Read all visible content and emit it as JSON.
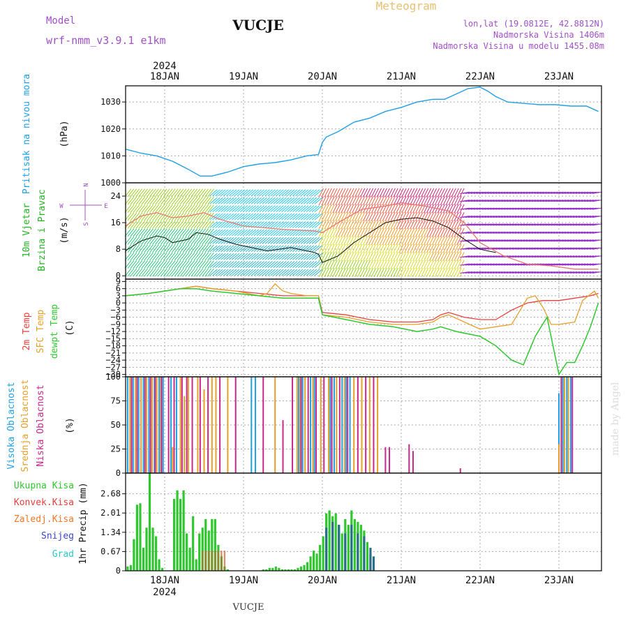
{
  "header": {
    "model_label": "Model",
    "model_name": "wrf-nmm_v3.9.1  e1km",
    "station": "VUCJE",
    "product": "Meteogram",
    "lonlat": "lon,lat (19.0812E, 42.8812N)",
    "elev": "Nadmorska Visina 1406m",
    "elev_model": "Nadmorska Visina u modelu 1455.08m",
    "watermark": "made by Angel",
    "footer": "VUCJE"
  },
  "colors": {
    "pressure": "#1ea0e6",
    "wind_speed": "#22b422",
    "wind_dir": "#22b422",
    "t2m": "#e8403c",
    "sfc": "#e6a02a",
    "dewpt": "#2ec82e",
    "cloud_high": "#1ea0e6",
    "cloud_mid": "#e6a02a",
    "cloud_low": "#c8288c",
    "precip_total": "#2ec82e",
    "precip_conv": "#e8403c",
    "precip_frz": "#f07828",
    "precip_snow": "#3c46c8",
    "precip_grad": "#28c8c8"
  },
  "chart_data": [
    {
      "type": "line",
      "title": "Pritisak na nivou mora",
      "ylabel": "(hPa)",
      "year": "2024",
      "days": [
        "18JAN",
        "19JAN",
        "20JAN",
        "21JAN",
        "22JAN",
        "23JAN"
      ],
      "yticks": [
        "1000",
        "1010",
        "1020",
        "1030"
      ],
      "ylim": [
        1000,
        1036
      ],
      "x": [
        -0.5,
        -0.3,
        -0.1,
        0.1,
        0.3,
        0.45,
        0.6,
        0.8,
        1.0,
        1.2,
        1.4,
        1.6,
        1.8,
        1.95,
        2.0,
        2.05,
        2.2,
        2.4,
        2.6,
        2.8,
        3.0,
        3.2,
        3.4,
        3.55,
        3.7,
        3.85,
        4.0,
        4.1,
        4.2,
        4.35,
        4.55,
        4.75,
        4.95,
        5.15,
        5.35,
        5.5
      ],
      "values": [
        1012.5,
        1011,
        1010,
        1008,
        1005,
        1002.5,
        1002.5,
        1004,
        1006,
        1007,
        1007.5,
        1008.5,
        1010,
        1010.5,
        1015,
        1017,
        1019,
        1022.5,
        1024,
        1026.5,
        1028,
        1030,
        1031,
        1031,
        1033,
        1035,
        1035.5,
        1034,
        1032,
        1030,
        1029.5,
        1029,
        1029,
        1028.5,
        1028.5,
        1026.5
      ]
    },
    {
      "type": "line",
      "title": "10m Vjetar Brzina i Pravac",
      "ylabel": "(m/s)",
      "compass": [
        "N",
        "E",
        "W",
        "S"
      ],
      "yticks": [
        "0",
        "8",
        "16",
        "24"
      ],
      "ylim": [
        -1,
        28
      ],
      "series": [
        {
          "x": [
            -0.5,
            -0.3,
            -0.1,
            0.0,
            0.1,
            0.3,
            0.4,
            0.55,
            0.7,
            0.9,
            1.1,
            1.3,
            1.6,
            1.9,
            1.95,
            2.0,
            2.2,
            2.4,
            2.6,
            2.8,
            3.0,
            3.2,
            3.4,
            3.6,
            3.8,
            4.0,
            4.1,
            4.2
          ],
          "values": [
            7.5,
            10.5,
            12,
            11.5,
            10,
            11,
            13,
            12.5,
            11,
            9.5,
            8.5,
            7.5,
            8.5,
            7,
            6.5,
            4,
            6,
            10,
            13,
            16,
            17,
            17.5,
            16.5,
            14.5,
            11,
            8,
            7.5,
            7
          ]
        },
        {
          "x": [
            -0.5,
            -0.3,
            -0.1,
            0.1,
            0.3,
            0.5,
            0.7,
            1.0,
            1.5,
            1.9,
            2.0,
            2.2,
            2.5,
            2.8,
            3.0,
            3.3,
            3.6,
            3.8,
            4.0,
            4.3,
            4.6,
            4.9,
            5.2,
            5.5
          ],
          "values": [
            15,
            18,
            19,
            17.5,
            18,
            19,
            17,
            15,
            14,
            13.5,
            13,
            16,
            20,
            21,
            22,
            21,
            19.5,
            16,
            10,
            6,
            3.5,
            3,
            2,
            2
          ]
        }
      ]
    },
    {
      "type": "line",
      "title": "2m Temp / SFC Temp / dewpt Temp",
      "ylabel": "(C)",
      "yticks": [
        "-30",
        "-27",
        "-24",
        "-21",
        "-18",
        "-15",
        "-12",
        "-9",
        "-6",
        "-3",
        "0",
        "3",
        "6",
        "9"
      ],
      "ylim": [
        -31,
        10
      ],
      "series": [
        {
          "name": "2m Temp",
          "x": [
            -0.5,
            -0.2,
            0.0,
            0.2,
            0.4,
            0.6,
            0.9,
            1.2,
            1.5,
            1.8,
            1.95,
            2.0,
            2.3,
            2.6,
            2.9,
            3.2,
            3.4,
            3.5,
            3.6,
            3.8,
            4.0,
            4.2,
            4.4,
            4.6,
            4.8,
            5.0,
            5.2,
            5.4,
            5.5
          ],
          "values": [
            3,
            4,
            5,
            6,
            7,
            6,
            5,
            4,
            3,
            3,
            3,
            -4,
            -5,
            -7,
            -8,
            -8,
            -7,
            -5,
            -4,
            -6,
            -7,
            -7,
            -3,
            0,
            1,
            1,
            2,
            3,
            4
          ]
        },
        {
          "name": "SFC Temp",
          "x": [
            -0.5,
            -0.2,
            0.0,
            0.2,
            0.4,
            0.6,
            0.9,
            1.2,
            1.3,
            1.4,
            1.5,
            1.6,
            1.8,
            1.95,
            2.0,
            2.3,
            2.6,
            2.9,
            3.2,
            3.4,
            3.5,
            3.6,
            3.8,
            4.0,
            4.2,
            4.4,
            4.6,
            4.7,
            4.8,
            4.9,
            5.0,
            5.2,
            5.3,
            5.45,
            5.5
          ],
          "values": [
            3,
            4,
            5,
            6,
            7,
            6,
            5,
            3,
            4,
            8,
            5,
            4,
            3,
            3,
            -5,
            -6,
            -8,
            -9,
            -9,
            -8,
            -6,
            -5,
            -8,
            -11,
            -10,
            -9,
            2,
            3,
            -2,
            -9,
            -9,
            -8,
            1,
            5,
            2
          ]
        },
        {
          "name": "dewpt Temp",
          "x": [
            -0.5,
            -0.2,
            0.0,
            0.2,
            0.4,
            0.6,
            0.9,
            1.2,
            1.5,
            1.8,
            1.95,
            2.0,
            2.3,
            2.6,
            2.9,
            3.2,
            3.4,
            3.5,
            3.7,
            4.0,
            4.2,
            4.4,
            4.55,
            4.7,
            4.85,
            4.95,
            5.0,
            5.1,
            5.2,
            5.3,
            5.4,
            5.5
          ],
          "values": [
            3,
            4,
            5,
            6,
            6,
            5,
            4,
            3,
            2,
            2,
            2,
            -5,
            -7,
            -9,
            -10,
            -12,
            -11,
            -10,
            -12,
            -14,
            -18,
            -24,
            -26,
            -14,
            -6,
            -22,
            -30,
            -25,
            -25,
            -18,
            -10,
            0
          ]
        }
      ]
    },
    {
      "type": "bar",
      "title": "Visoka Oblacnost / Srednja Oblacnost / Niska Oblacnost",
      "ylabel": "(%)",
      "yticks": [
        "0",
        "25",
        "50",
        "75",
        "100"
      ],
      "ylim": [
        0,
        100
      ],
      "series": [
        {
          "name": "Visoka Oblacnost",
          "x": [
            -0.47,
            -0.4,
            -0.33,
            -0.27,
            -0.2,
            -0.13,
            -0.07,
            -0.02,
            0.08,
            0.15,
            1.1,
            1.15,
            1.7,
            1.75,
            1.85,
            1.9,
            2.1,
            2.15,
            2.25,
            2.3,
            2.35,
            5.0,
            5.05,
            5.1,
            5.15
          ],
          "values": [
            100,
            100,
            100,
            100,
            100,
            100,
            100,
            100,
            100,
            100,
            100,
            100,
            100,
            100,
            100,
            100,
            100,
            100,
            100,
            100,
            100,
            83,
            100,
            100,
            100
          ]
        },
        {
          "name": "Srednja Oblacnost",
          "x": [
            -0.44,
            -0.37,
            -0.3,
            -0.23,
            -0.16,
            -0.1,
            -0.05,
            0.1,
            0.2,
            0.25,
            0.3,
            0.42,
            0.5,
            0.6,
            0.65,
            0.8,
            1.4,
            1.68,
            1.72,
            1.78,
            1.88,
            1.98,
            2.08,
            2.18,
            2.28,
            2.4,
            2.5,
            2.6,
            2.7,
            5.0,
            5.07,
            5.12
          ],
          "values": [
            100,
            100,
            100,
            100,
            100,
            100,
            100,
            27,
            100,
            80,
            100,
            100,
            87,
            100,
            100,
            100,
            100,
            100,
            100,
            100,
            100,
            100,
            100,
            100,
            100,
            100,
            100,
            100,
            100,
            30,
            100,
            100
          ]
        },
        {
          "name": "Niska Oblacnost",
          "x": [
            -0.42,
            -0.35,
            -0.25,
            -0.18,
            -0.12,
            -0.04,
            0.05,
            0.12,
            0.22,
            0.28,
            0.35,
            0.45,
            0.55,
            0.7,
            0.9,
            1.25,
            1.5,
            1.62,
            1.73,
            1.82,
            1.92,
            2.02,
            2.12,
            2.22,
            2.32,
            2.45,
            2.55,
            2.65,
            2.8,
            2.85,
            3.1,
            3.15,
            3.75,
            5.03,
            5.17
          ],
          "values": [
            100,
            100,
            100,
            100,
            100,
            100,
            100,
            100,
            100,
            100,
            100,
            100,
            100,
            100,
            100,
            100,
            55,
            100,
            100,
            100,
            100,
            100,
            100,
            100,
            100,
            100,
            100,
            100,
            27,
            27,
            30,
            23,
            5,
            100,
            100
          ]
        }
      ]
    },
    {
      "type": "bar",
      "title": "1hr Precip",
      "ylabel": "1hr Precip (mm)",
      "legend": [
        "Ukupna Kisa",
        "Konvek.Kisa",
        "Zaledj.Kisa",
        "Snijeg",
        "Grad"
      ],
      "yticks": [
        "0",
        "0.67",
        "1.34",
        "2.01",
        "2.68"
      ],
      "ylim": [
        0,
        3.4
      ],
      "series": [
        {
          "name": "Ukupna Kisa",
          "x": [
            -0.47,
            -0.43,
            -0.39,
            -0.35,
            -0.31,
            -0.27,
            -0.23,
            -0.19,
            -0.15,
            -0.11,
            -0.07,
            -0.03,
            0.12,
            0.16,
            0.2,
            0.24,
            0.28,
            0.32,
            0.36,
            0.4,
            0.44,
            0.48,
            0.52,
            0.56,
            0.6,
            0.64,
            0.68,
            0.72,
            0.76,
            0.8,
            1.25,
            1.29,
            1.33,
            1.37,
            1.41,
            1.45,
            1.49,
            1.53,
            1.57,
            1.61,
            1.65,
            1.69,
            1.73,
            1.77,
            1.81,
            1.85,
            1.89,
            1.93,
            1.97,
            2.01,
            2.05,
            2.09,
            2.13,
            2.17,
            2.21,
            2.25,
            2.29,
            2.33,
            2.37,
            2.41,
            2.45,
            2.49,
            2.53,
            2.57,
            2.61,
            2.65
          ],
          "values": [
            0.15,
            0.2,
            1.1,
            2.3,
            2.35,
            0.8,
            1.5,
            3.4,
            1.5,
            1.2,
            0.4,
            0.1,
            2.5,
            2.8,
            2.5,
            2.8,
            1.3,
            0.8,
            1.9,
            0.4,
            1.3,
            1.5,
            1.8,
            1.4,
            1.8,
            1.8,
            0.9,
            0.5,
            0.15,
            0.05,
            0.05,
            0.05,
            0.1,
            0.1,
            0.15,
            0.1,
            0.05,
            0.05,
            0.05,
            0.05,
            0.05,
            0.1,
            0.15,
            0.2,
            0.3,
            0.5,
            0.7,
            0.6,
            0.9,
            1.2,
            2.0,
            2.1,
            1.9,
            2.0,
            1.6,
            1.3,
            1.8,
            1.6,
            2.1,
            1.8,
            1.7,
            1.6,
            1.4,
            1.0,
            0.6,
            0.05
          ]
        },
        {
          "name": "Snijeg",
          "x": [
            2.05,
            2.13,
            2.21,
            2.29,
            2.37,
            2.45,
            2.53,
            2.61,
            2.65
          ],
          "values": [
            1.5,
            1.7,
            1.6,
            1.3,
            1.6,
            1.3,
            1.2,
            0.8,
            0.5
          ]
        }
      ]
    }
  ]
}
